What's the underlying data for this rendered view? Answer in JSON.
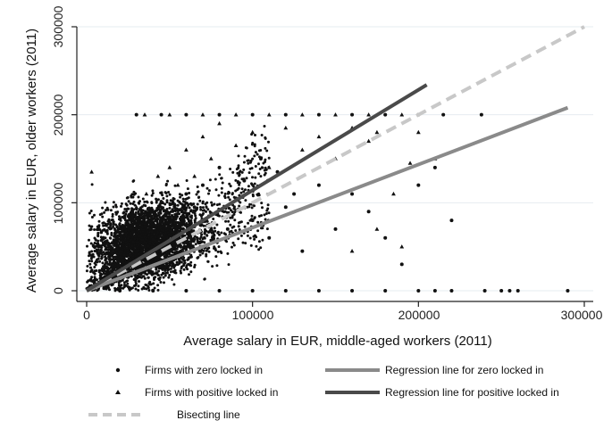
{
  "chart_data": {
    "type": "scatter",
    "title": "",
    "xlabel": "Average salary in EUR, middle-aged workers (2011)",
    "ylabel": "Average salary in EUR, older workers (2011)",
    "xlim": [
      0,
      300000
    ],
    "ylim": [
      0,
      300000
    ],
    "x_ticks": [
      "0",
      "100000",
      "200000",
      "300000"
    ],
    "y_ticks": [
      "0",
      "100000",
      "200000",
      "300000"
    ],
    "grid": "horizontal",
    "legend_position": "bottom",
    "series": [
      {
        "name": "Firms with zero locked in",
        "marker": "circle",
        "color": "#111111",
        "points": [
          [
            5000,
            3000
          ],
          [
            12000,
            15000
          ],
          [
            18000,
            22000
          ],
          [
            22000,
            35000
          ],
          [
            25000,
            40000
          ],
          [
            28000,
            55000
          ],
          [
            30000,
            45000
          ],
          [
            32000,
            62000
          ],
          [
            35000,
            50000
          ],
          [
            38000,
            70000
          ],
          [
            40000,
            58000
          ],
          [
            42000,
            80000
          ],
          [
            45000,
            65000
          ],
          [
            48000,
            90000
          ],
          [
            50000,
            72000
          ],
          [
            52000,
            100000
          ],
          [
            55000,
            60000
          ],
          [
            58000,
            85000
          ],
          [
            60000,
            110000
          ],
          [
            62000,
            75000
          ],
          [
            65000,
            95000
          ],
          [
            70000,
            120000
          ],
          [
            75000,
            88000
          ],
          [
            80000,
            140000
          ],
          [
            85000,
            70000
          ],
          [
            90000,
            105000
          ],
          [
            95000,
            125000
          ],
          [
            100000,
            80000
          ],
          [
            105000,
            150000
          ],
          [
            110000,
            60000
          ],
          [
            115000,
            135000
          ],
          [
            120000,
            95000
          ],
          [
            125000,
            110000
          ],
          [
            130000,
            45000
          ],
          [
            140000,
            120000
          ],
          [
            150000,
            70000
          ],
          [
            160000,
            110000
          ],
          [
            170000,
            90000
          ],
          [
            180000,
            60000
          ],
          [
            190000,
            30000
          ],
          [
            200000,
            120000
          ],
          [
            210000,
            140000
          ],
          [
            220000,
            80000
          ],
          [
            20000,
            0
          ],
          [
            40000,
            0
          ],
          [
            60000,
            0
          ],
          [
            80000,
            0
          ],
          [
            100000,
            0
          ],
          [
            120000,
            0
          ],
          [
            140000,
            0
          ],
          [
            160000,
            0
          ],
          [
            180000,
            0
          ],
          [
            200000,
            0
          ],
          [
            210000,
            0
          ],
          [
            220000,
            0
          ],
          [
            240000,
            0
          ],
          [
            250000,
            0
          ],
          [
            255000,
            0
          ],
          [
            260000,
            0
          ],
          [
            290000,
            0
          ],
          [
            30000,
            200000
          ],
          [
            45000,
            200000
          ],
          [
            60000,
            200000
          ],
          [
            80000,
            200000
          ],
          [
            100000,
            200000
          ],
          [
            120000,
            200000
          ],
          [
            140000,
            200000
          ],
          [
            160000,
            200000
          ],
          [
            180000,
            200000
          ],
          [
            200000,
            200000
          ],
          [
            215000,
            200000
          ],
          [
            238000,
            200000
          ]
        ]
      },
      {
        "name": "Firms with positive locked in",
        "marker": "triangle",
        "color": "#111111",
        "points": [
          [
            3000,
            135000
          ],
          [
            8000,
            50000
          ],
          [
            15000,
            30000
          ],
          [
            20000,
            45000
          ],
          [
            25000,
            60000
          ],
          [
            28000,
            80000
          ],
          [
            30000,
            95000
          ],
          [
            33000,
            70000
          ],
          [
            36000,
            110000
          ],
          [
            40000,
            90000
          ],
          [
            43000,
            130000
          ],
          [
            46000,
            100000
          ],
          [
            50000,
            140000
          ],
          [
            55000,
            120000
          ],
          [
            60000,
            160000
          ],
          [
            65000,
            130000
          ],
          [
            70000,
            175000
          ],
          [
            75000,
            150000
          ],
          [
            80000,
            190000
          ],
          [
            90000,
            165000
          ],
          [
            100000,
            180000
          ],
          [
            110000,
            140000
          ],
          [
            120000,
            185000
          ],
          [
            130000,
            160000
          ],
          [
            140000,
            175000
          ],
          [
            150000,
            150000
          ],
          [
            160000,
            185000
          ],
          [
            170000,
            170000
          ],
          [
            175000,
            180000
          ],
          [
            185000,
            110000
          ],
          [
            195000,
            145000
          ],
          [
            200000,
            180000
          ],
          [
            210000,
            150000
          ],
          [
            160000,
            45000
          ],
          [
            175000,
            70000
          ],
          [
            190000,
            50000
          ],
          [
            35000,
            200000
          ],
          [
            50000,
            200000
          ],
          [
            70000,
            200000
          ],
          [
            90000,
            200000
          ],
          [
            110000,
            200000
          ],
          [
            130000,
            200000
          ],
          [
            150000,
            200000
          ],
          [
            170000,
            200000
          ],
          [
            190000,
            200000
          ]
        ]
      }
    ],
    "lines": [
      {
        "name": "Regression line for zero locked in",
        "color": "#8a8a8a",
        "dash": "solid",
        "x": [
          0,
          290000
        ],
        "y": [
          0,
          208000
        ]
      },
      {
        "name": "Regression line for positive locked in",
        "color": "#4a4a4a",
        "dash": "solid",
        "x": [
          0,
          205000
        ],
        "y": [
          0,
          234000
        ]
      },
      {
        "name": "Bisecting line",
        "color": "#c8c8c8",
        "dash": "dashed",
        "x": [
          0,
          300000
        ],
        "y": [
          0,
          300000
        ]
      }
    ],
    "dense_cluster": {
      "x_range": [
        0,
        80000
      ],
      "y_range": [
        0,
        130000
      ],
      "center": [
        35000,
        55000
      ],
      "spread": [
        16000,
        22000
      ]
    }
  }
}
